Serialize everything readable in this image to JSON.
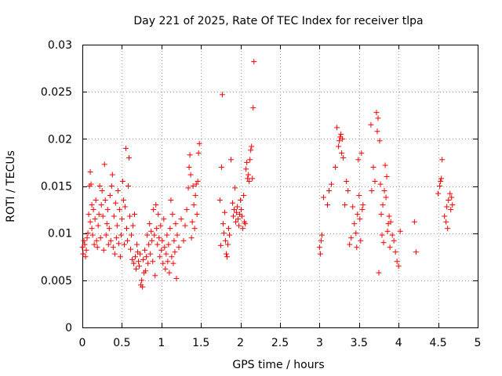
{
  "chart_data": {
    "type": "scatter",
    "title": "Day 221 of 2025, Rate Of TEC Index for receiver tlpa",
    "xlabel": "GPS time / hours",
    "ylabel": "ROTI / TECUs",
    "xlim": [
      0,
      5
    ],
    "ylim": [
      0,
      0.03
    ],
    "x_ticks": [
      "0",
      "0.5",
      "1",
      "1.5",
      "2",
      "2.5",
      "3",
      "3.5",
      "4",
      "4.5",
      "5"
    ],
    "y_ticks": [
      "0",
      "0.005",
      "0.01",
      "0.015",
      "0.02",
      "0.025",
      "0.03"
    ],
    "grid": true,
    "legend": "none",
    "marker": "plus",
    "color": "#ff0000",
    "series": [
      {
        "points": [
          [
            0.0,
            0.0085
          ],
          [
            0.01,
            0.0078
          ],
          [
            0.02,
            0.0092
          ],
          [
            0.03,
            0.0088
          ],
          [
            0.04,
            0.0075
          ],
          [
            0.05,
            0.0082
          ],
          [
            0.06,
            0.0095
          ],
          [
            0.07,
            0.01
          ],
          [
            0.08,
            0.012
          ],
          [
            0.09,
            0.015
          ],
          [
            0.1,
            0.0165
          ],
          [
            0.1,
            0.0112
          ],
          [
            0.11,
            0.0152
          ],
          [
            0.12,
            0.013
          ],
          [
            0.12,
            0.0105
          ],
          [
            0.13,
            0.0098
          ],
          [
            0.14,
            0.0125
          ],
          [
            0.15,
            0.0088
          ],
          [
            0.16,
            0.0115
          ],
          [
            0.17,
            0.0135
          ],
          [
            0.18,
            0.0092
          ],
          [
            0.19,
            0.0085
          ],
          [
            0.2,
            0.0108
          ],
          [
            0.21,
            0.012
          ],
          [
            0.22,
            0.015
          ],
          [
            0.23,
            0.0095
          ],
          [
            0.24,
            0.013
          ],
          [
            0.25,
            0.0145
          ],
          [
            0.26,
            0.0118
          ],
          [
            0.27,
            0.0082
          ],
          [
            0.28,
            0.0173
          ],
          [
            0.29,
            0.0135
          ],
          [
            0.3,
            0.0098
          ],
          [
            0.31,
            0.011
          ],
          [
            0.32,
            0.0125
          ],
          [
            0.33,
            0.0088
          ],
          [
            0.34,
            0.0105
          ],
          [
            0.35,
            0.014
          ],
          [
            0.36,
            0.0092
          ],
          [
            0.37,
            0.015
          ],
          [
            0.38,
            0.0162
          ],
          [
            0.39,
            0.0085
          ],
          [
            0.4,
            0.0118
          ],
          [
            0.41,
            0.0078
          ],
          [
            0.42,
            0.0132
          ],
          [
            0.43,
            0.0095
          ],
          [
            0.44,
            0.0108
          ],
          [
            0.45,
            0.0145
          ],
          [
            0.46,
            0.0089
          ],
          [
            0.47,
            0.0125
          ],
          [
            0.48,
            0.0075
          ],
          [
            0.49,
            0.0098
          ],
          [
            0.5,
            0.0115
          ],
          [
            0.51,
            0.0155
          ],
          [
            0.52,
            0.0135
          ],
          [
            0.53,
            0.0088
          ],
          [
            0.54,
            0.0128
          ],
          [
            0.55,
            0.019
          ],
          [
            0.56,
            0.0105
          ],
          [
            0.57,
            0.0092
          ],
          [
            0.58,
            0.015
          ],
          [
            0.59,
            0.018
          ],
          [
            0.6,
            0.0118
          ],
          [
            0.61,
            0.0083
          ],
          [
            0.62,
            0.0098
          ],
          [
            0.63,
            0.0072
          ],
          [
            0.64,
            0.0108
          ],
          [
            0.65,
            0.0068
          ],
          [
            0.66,
            0.012
          ],
          [
            0.67,
            0.0075
          ],
          [
            0.68,
            0.0062
          ],
          [
            0.69,
            0.0088
          ],
          [
            0.7,
            0.008
          ],
          [
            0.71,
            0.007
          ],
          [
            0.72,
            0.0065
          ],
          [
            0.73,
            0.0078
          ],
          [
            0.74,
            0.0045
          ],
          [
            0.75,
            0.005
          ],
          [
            0.76,
            0.0043
          ],
          [
            0.77,
            0.0072
          ],
          [
            0.78,
            0.0058
          ],
          [
            0.79,
            0.0082
          ],
          [
            0.8,
            0.006
          ],
          [
            0.81,
            0.0075
          ],
          [
            0.82,
            0.0098
          ],
          [
            0.83,
            0.0068
          ],
          [
            0.84,
            0.0088
          ],
          [
            0.85,
            0.011
          ],
          [
            0.86,
            0.0078
          ],
          [
            0.87,
            0.0102
          ],
          [
            0.88,
            0.0092
          ],
          [
            0.89,
            0.007
          ],
          [
            0.9,
            0.0125
          ],
          [
            0.91,
            0.0098
          ],
          [
            0.92,
            0.0055
          ],
          [
            0.93,
            0.013
          ],
          [
            0.94,
            0.0105
          ],
          [
            0.95,
            0.0088
          ],
          [
            0.96,
            0.012
          ],
          [
            0.97,
            0.0095
          ],
          [
            0.98,
            0.0075
          ],
          [
            0.99,
            0.0108
          ],
          [
            1.0,
            0.0082
          ],
          [
            1.01,
            0.0092
          ],
          [
            1.02,
            0.0068
          ],
          [
            1.03,
            0.0115
          ],
          [
            1.04,
            0.0085
          ],
          [
            1.05,
            0.0062
          ],
          [
            1.06,
            0.0078
          ],
          [
            1.07,
            0.0098
          ],
          [
            1.08,
            0.007
          ],
          [
            1.09,
            0.0088
          ],
          [
            1.1,
            0.0058
          ],
          [
            1.11,
            0.0105
          ],
          [
            1.12,
            0.0135
          ],
          [
            1.13,
            0.0075
          ],
          [
            1.14,
            0.012
          ],
          [
            1.15,
            0.0068
          ],
          [
            1.16,
            0.0092
          ],
          [
            1.17,
            0.008
          ],
          [
            1.18,
            0.011
          ],
          [
            1.19,
            0.0052
          ],
          [
            1.2,
            0.0098
          ],
          [
            1.22,
            0.0085
          ],
          [
            1.25,
            0.0115
          ],
          [
            1.28,
            0.0092
          ],
          [
            1.3,
            0.0108
          ],
          [
            1.32,
            0.0125
          ],
          [
            1.34,
            0.0148
          ],
          [
            1.35,
            0.017
          ],
          [
            1.36,
            0.0183
          ],
          [
            1.37,
            0.0162
          ],
          [
            1.38,
            0.0095
          ],
          [
            1.39,
            0.0112
          ],
          [
            1.4,
            0.015
          ],
          [
            1.41,
            0.013
          ],
          [
            1.42,
            0.0105
          ],
          [
            1.43,
            0.014
          ],
          [
            1.44,
            0.0152
          ],
          [
            1.45,
            0.012
          ],
          [
            1.46,
            0.0155
          ],
          [
            1.47,
            0.0185
          ],
          [
            1.48,
            0.0195
          ],
          [
            1.74,
            0.0135
          ],
          [
            1.75,
            0.0087
          ],
          [
            1.76,
            0.017
          ],
          [
            1.77,
            0.0247
          ],
          [
            1.78,
            0.011
          ],
          [
            1.79,
            0.01
          ],
          [
            1.8,
            0.0122
          ],
          [
            1.81,
            0.0092
          ],
          [
            1.82,
            0.0078
          ],
          [
            1.83,
            0.0075
          ],
          [
            1.84,
            0.0088
          ],
          [
            1.85,
            0.0105
          ],
          [
            1.86,
            0.0098
          ],
          [
            1.88,
            0.0178
          ],
          [
            1.9,
            0.0132
          ],
          [
            1.91,
            0.0118
          ],
          [
            1.92,
            0.0125
          ],
          [
            1.93,
            0.0148
          ],
          [
            1.94,
            0.0112
          ],
          [
            1.95,
            0.0122
          ],
          [
            1.96,
            0.0128
          ],
          [
            1.97,
            0.0115
          ],
          [
            1.98,
            0.0108
          ],
          [
            1.99,
            0.012
          ],
          [
            2.0,
            0.0135
          ],
          [
            2.01,
            0.0125
          ],
          [
            2.02,
            0.0118
          ],
          [
            2.03,
            0.0105
          ],
          [
            2.04,
            0.014
          ],
          [
            2.05,
            0.0112
          ],
          [
            2.06,
            0.011
          ],
          [
            2.07,
            0.0168
          ],
          [
            2.08,
            0.0175
          ],
          [
            2.09,
            0.0158
          ],
          [
            2.1,
            0.0162
          ],
          [
            2.11,
            0.0155
          ],
          [
            2.12,
            0.0178
          ],
          [
            2.13,
            0.0188
          ],
          [
            2.14,
            0.0192
          ],
          [
            2.15,
            0.0158
          ],
          [
            2.16,
            0.0233
          ],
          [
            2.17,
            0.0282
          ],
          [
            3.0,
            0.0085
          ],
          [
            3.01,
            0.0078
          ],
          [
            3.02,
            0.0092
          ],
          [
            3.03,
            0.0098
          ],
          [
            3.05,
            0.0138
          ],
          [
            3.1,
            0.013
          ],
          [
            3.12,
            0.0145
          ],
          [
            3.15,
            0.0152
          ],
          [
            3.2,
            0.017
          ],
          [
            3.22,
            0.0212
          ],
          [
            3.24,
            0.0192
          ],
          [
            3.25,
            0.0198
          ],
          [
            3.26,
            0.0202
          ],
          [
            3.27,
            0.0205
          ],
          [
            3.28,
            0.0185
          ],
          [
            3.29,
            0.02
          ],
          [
            3.3,
            0.018
          ],
          [
            3.32,
            0.013
          ],
          [
            3.34,
            0.0155
          ],
          [
            3.36,
            0.0145
          ],
          [
            3.38,
            0.0088
          ],
          [
            3.4,
            0.0095
          ],
          [
            3.42,
            0.0128
          ],
          [
            3.44,
            0.011
          ],
          [
            3.46,
            0.01
          ],
          [
            3.47,
            0.0085
          ],
          [
            3.48,
            0.012
          ],
          [
            3.49,
            0.0178
          ],
          [
            3.5,
            0.014
          ],
          [
            3.51,
            0.0115
          ],
          [
            3.52,
            0.0092
          ],
          [
            3.53,
            0.0185
          ],
          [
            3.54,
            0.0125
          ],
          [
            3.55,
            0.013
          ],
          [
            3.65,
            0.0215
          ],
          [
            3.66,
            0.0145
          ],
          [
            3.68,
            0.017
          ],
          [
            3.7,
            0.0155
          ],
          [
            3.72,
            0.0228
          ],
          [
            3.73,
            0.0208
          ],
          [
            3.74,
            0.0222
          ],
          [
            3.75,
            0.0058
          ],
          [
            3.76,
            0.0198
          ],
          [
            3.77,
            0.0152
          ],
          [
            3.78,
            0.012
          ],
          [
            3.79,
            0.0098
          ],
          [
            3.8,
            0.013
          ],
          [
            3.81,
            0.009
          ],
          [
            3.82,
            0.0145
          ],
          [
            3.83,
            0.0172
          ],
          [
            3.84,
            0.0138
          ],
          [
            3.85,
            0.016
          ],
          [
            3.86,
            0.0102
          ],
          [
            3.87,
            0.011
          ],
          [
            3.88,
            0.0118
          ],
          [
            3.89,
            0.0085
          ],
          [
            3.9,
            0.0112
          ],
          [
            3.92,
            0.0098
          ],
          [
            3.94,
            0.0092
          ],
          [
            3.96,
            0.008
          ],
          [
            3.98,
            0.007
          ],
          [
            4.0,
            0.0065
          ],
          [
            4.02,
            0.0102
          ],
          [
            4.2,
            0.0112
          ],
          [
            4.22,
            0.008
          ],
          [
            4.5,
            0.0142
          ],
          [
            4.52,
            0.015
          ],
          [
            4.53,
            0.0155
          ],
          [
            4.54,
            0.0158
          ],
          [
            4.55,
            0.0178
          ],
          [
            4.58,
            0.0118
          ],
          [
            4.6,
            0.0112
          ],
          [
            4.61,
            0.0128
          ],
          [
            4.62,
            0.0105
          ],
          [
            4.63,
            0.0135
          ],
          [
            4.65,
            0.0142
          ],
          [
            4.66,
            0.0125
          ],
          [
            4.67,
            0.0138
          ],
          [
            4.68,
            0.013
          ]
        ]
      }
    ]
  }
}
